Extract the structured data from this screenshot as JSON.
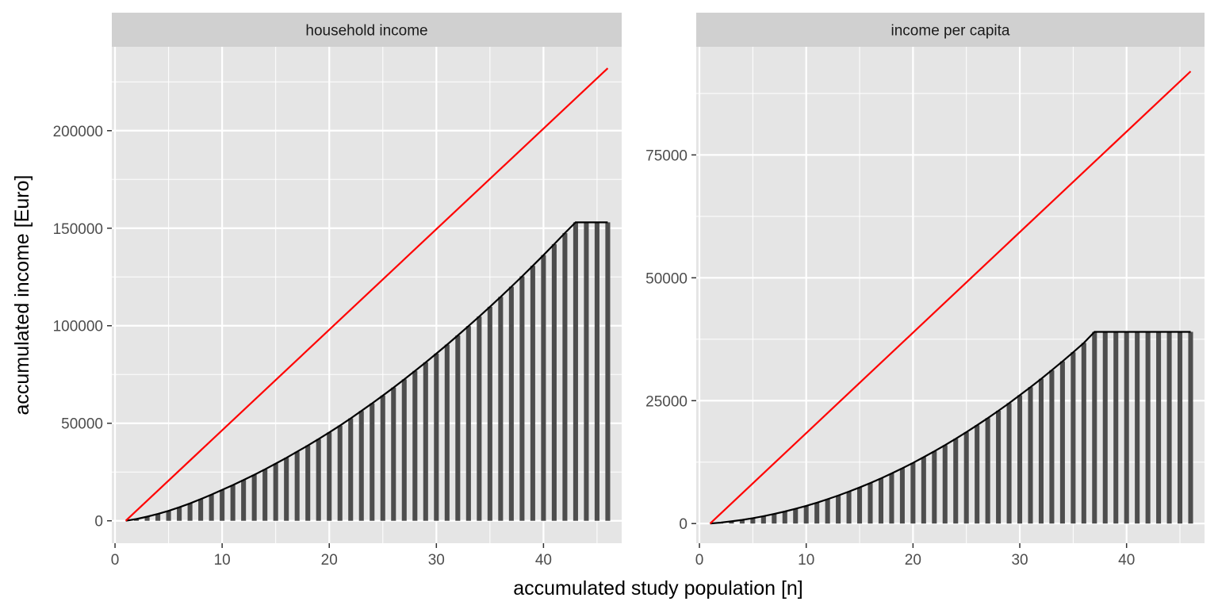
{
  "chart_data": {
    "type": "bar",
    "xlabel": "accumulated study population [n]",
    "ylabel": "accumulated income [Euro]",
    "grid": true,
    "legend": "none",
    "colors": {
      "bars": "#4d4d4d",
      "lorenz_line": "#000000",
      "equality_line": "#ff0000",
      "panel_background": "#e5e5e5",
      "strip_background": "#d0d0d0",
      "gridline": "#ffffff"
    },
    "n": 46,
    "x_ticks": [
      0,
      10,
      20,
      30,
      40
    ],
    "panels": [
      {
        "strip": "household income",
        "xlim": [
          -0.3,
          47.3
        ],
        "ylim": [
          -11500,
          243000
        ],
        "y_ticks": [
          0,
          50000,
          100000,
          150000,
          200000
        ],
        "y_tick_labels": [
          "0",
          "50000",
          "100000",
          "150000",
          "200000"
        ],
        "x_tick_labels": [
          "0",
          "10",
          "20",
          "30",
          "40"
        ],
        "equality_line": {
          "x": [
            1,
            46
          ],
          "y": [
            0,
            232000
          ]
        },
        "cumulative_income": [
          0,
          900,
          2100,
          3500,
          5100,
          6900,
          8900,
          11100,
          13400,
          15800,
          18300,
          20900,
          23600,
          26400,
          29300,
          32300,
          35400,
          38600,
          41900,
          45300,
          48800,
          52500,
          56300,
          60200,
          64200,
          68300,
          72500,
          76800,
          81200,
          85700,
          90300,
          95000,
          99800,
          104700,
          109700,
          114800,
          120000,
          125300,
          130700,
          136200,
          141800,
          147500,
          153000,
          153000,
          153000,
          153000
        ]
      },
      {
        "strip": "income per capita",
        "xlim": [
          -0.3,
          47.3
        ],
        "ylim": [
          -4000,
          97000
        ],
        "y_ticks": [
          0,
          25000,
          50000,
          75000
        ],
        "y_tick_labels": [
          "0",
          "25000",
          "50000",
          "75000"
        ],
        "x_tick_labels": [
          "0",
          "10",
          "20",
          "30",
          "40"
        ],
        "equality_line": {
          "x": [
            1,
            46
          ],
          "y": [
            0,
            92000
          ]
        },
        "cumulative_income": [
          0,
          200,
          450,
          750,
          1100,
          1500,
          1950,
          2450,
          3000,
          3600,
          4250,
          4950,
          5700,
          6500,
          7350,
          8250,
          9200,
          10200,
          11250,
          12350,
          13500,
          14700,
          15950,
          17250,
          18600,
          20000,
          21450,
          22950,
          24500,
          26100,
          27750,
          29450,
          31200,
          33000,
          34850,
          36750,
          39000,
          39000,
          39000,
          39000,
          39000,
          39000,
          39000,
          39000,
          39000,
          39000
        ]
      }
    ]
  }
}
